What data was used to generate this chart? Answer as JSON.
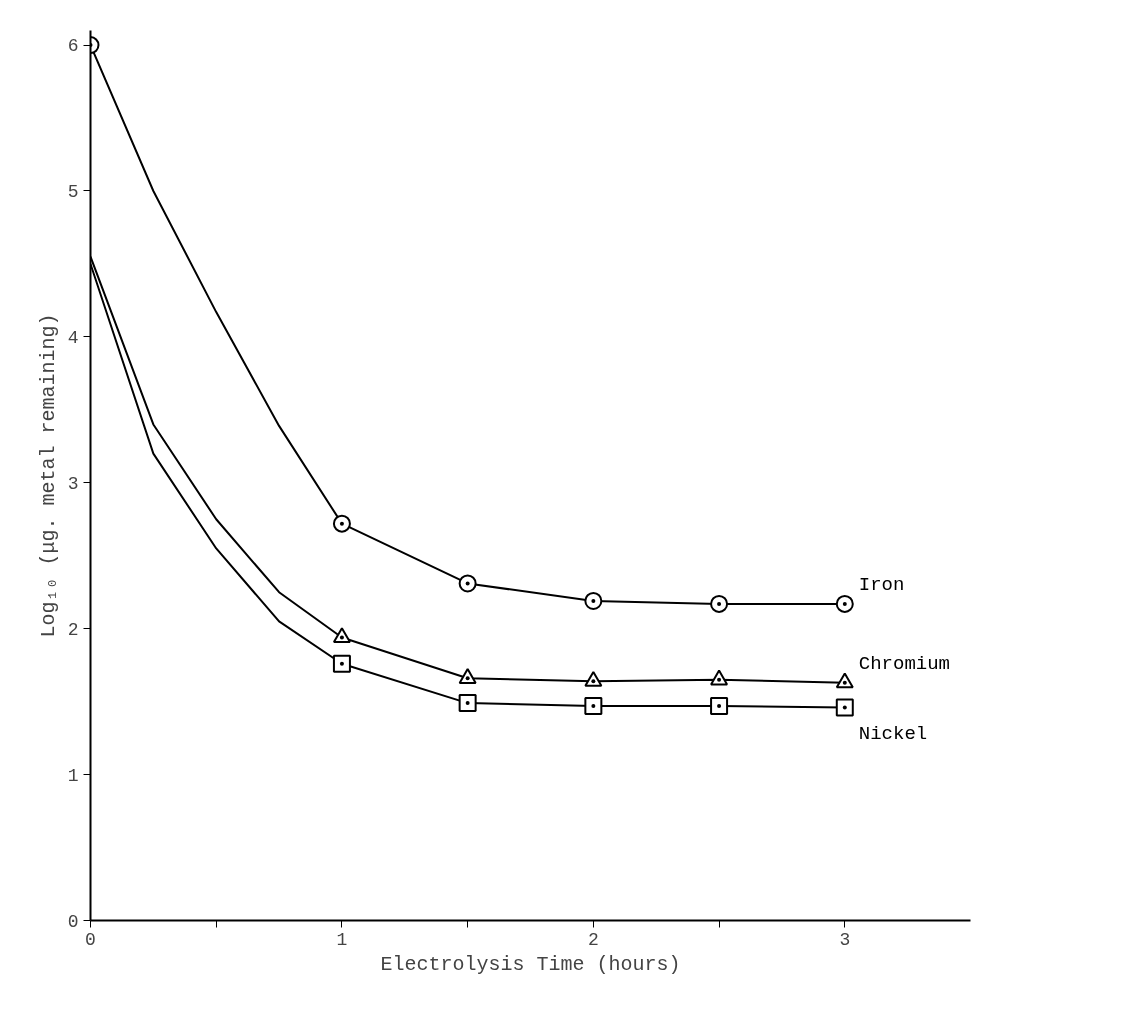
{
  "chart_data": {
    "type": "line",
    "xlabel": "Electrolysis Time (hours)",
    "ylabel": "Log₁₀ (μg. metal remaining)",
    "xlim": [
      0,
      3.5
    ],
    "ylim": [
      0,
      6.1
    ],
    "xticks": [
      0,
      {
        "value": 0.5,
        "label": null
      },
      1,
      {
        "value": 1.5,
        "label": null
      },
      2,
      {
        "value": 2.5,
        "label": null
      },
      3
    ],
    "yticks": [
      0,
      1,
      2,
      3,
      4,
      5,
      6
    ],
    "grid": false,
    "line_style": "solid",
    "series": [
      {
        "type": "line",
        "color": "#000000",
        "marker": "none",
        "x": [
          0,
          0.25,
          0.5,
          0.75,
          1,
          1.5,
          2,
          2.5,
          3
        ],
        "values": [
          6.0,
          5.0,
          4.17,
          3.39,
          2.72,
          2.31,
          2.19,
          2.17,
          2.17
        ]
      },
      {
        "type": "line",
        "color": "#000000",
        "marker": "none",
        "x": [
          0,
          0.25,
          0.5,
          0.75,
          1,
          1.5,
          2,
          2.5,
          3
        ],
        "values": [
          4.55,
          3.4,
          2.75,
          2.25,
          1.94,
          1.66,
          1.64,
          1.65,
          1.63
        ]
      },
      {
        "type": "line",
        "color": "#000000",
        "marker": "none",
        "x": [
          0,
          0.25,
          0.5,
          0.75,
          1,
          1.5,
          2,
          2.5,
          3
        ],
        "values": [
          4.5,
          3.2,
          2.55,
          2.05,
          1.76,
          1.49,
          1.47,
          1.47,
          1.46
        ]
      },
      {
        "type": "scatter",
        "name": "Iron",
        "color": "#000000",
        "marker": "circle",
        "x": [
          0,
          1,
          1.5,
          2,
          2.5,
          3
        ],
        "values": [
          6.0,
          2.72,
          2.31,
          2.19,
          2.17,
          2.17
        ]
      },
      {
        "type": "scatter",
        "name": "Chromium",
        "color": "#000000",
        "marker": "triangle",
        "x": [
          1,
          1.5,
          2,
          2.5,
          3
        ],
        "values": [
          1.94,
          1.66,
          1.64,
          1.65,
          1.63
        ]
      },
      {
        "type": "scatter",
        "name": "Nickel",
        "color": "#000000",
        "marker": "square",
        "x": [
          1,
          1.5,
          2,
          2.5,
          3
        ],
        "values": [
          1.76,
          1.49,
          1.47,
          1.47,
          1.46
        ]
      }
    ]
  }
}
